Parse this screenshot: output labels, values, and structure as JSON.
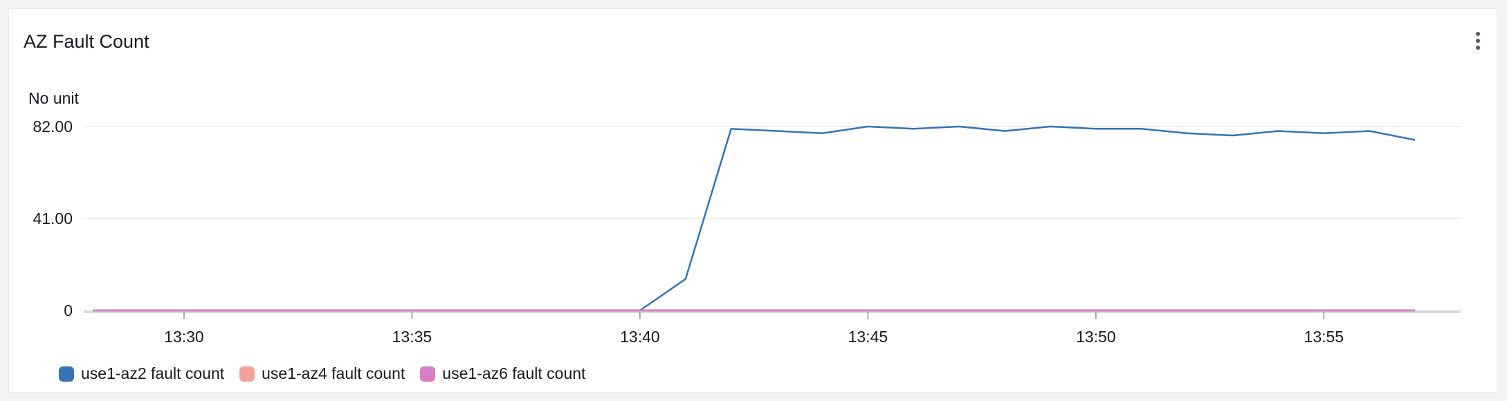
{
  "widget": {
    "title": "AZ Fault Count",
    "unit_label": "No unit",
    "menu_icon": "more-vertical-icon"
  },
  "chart_data": {
    "type": "line",
    "title": "AZ Fault Count",
    "ylabel": "No unit",
    "ylim": [
      0,
      82
    ],
    "yticks": [
      0,
      41,
      82
    ],
    "ytick_labels": [
      "0",
      "41.00",
      "82.00"
    ],
    "xlim_minutes": [
      "13:28",
      "13:58"
    ],
    "xtick_labels": [
      "13:30",
      "13:35",
      "13:40",
      "13:45",
      "13:50",
      "13:55"
    ],
    "grid": true,
    "legend_position": "bottom-left",
    "x": [
      "13:28",
      "13:29",
      "13:30",
      "13:31",
      "13:32",
      "13:33",
      "13:34",
      "13:35",
      "13:36",
      "13:37",
      "13:38",
      "13:39",
      "13:40",
      "13:41",
      "13:42",
      "13:43",
      "13:44",
      "13:45",
      "13:46",
      "13:47",
      "13:48",
      "13:49",
      "13:50",
      "13:51",
      "13:52",
      "13:53",
      "13:54",
      "13:55",
      "13:56",
      "13:57"
    ],
    "series": [
      {
        "name": "use1-az2 fault count",
        "color": "#3574b4",
        "values": [
          0,
          0,
          0,
          0,
          0,
          0,
          0,
          0,
          0,
          0,
          0,
          0,
          0,
          14,
          81,
          80,
          79,
          82,
          81,
          82,
          80,
          82,
          81,
          81,
          79,
          78,
          80,
          79,
          80,
          76
        ]
      },
      {
        "name": "use1-az4 fault count",
        "color": "#f4a39c",
        "values": [
          0,
          0,
          0,
          0,
          0,
          0,
          0,
          0,
          0,
          0,
          0,
          0,
          0,
          0,
          0,
          0,
          0,
          0,
          0,
          0,
          0,
          0,
          0,
          0,
          0,
          0,
          0,
          0,
          0,
          0
        ]
      },
      {
        "name": "use1-az6 fault count",
        "color": "#d97ec6",
        "values": [
          0,
          0,
          0,
          0,
          0,
          0,
          0,
          0,
          0,
          0,
          0,
          0,
          0,
          0,
          0,
          0,
          0,
          0,
          0,
          0,
          0,
          0,
          0,
          0,
          0,
          0,
          0,
          0,
          0,
          0
        ]
      }
    ]
  }
}
